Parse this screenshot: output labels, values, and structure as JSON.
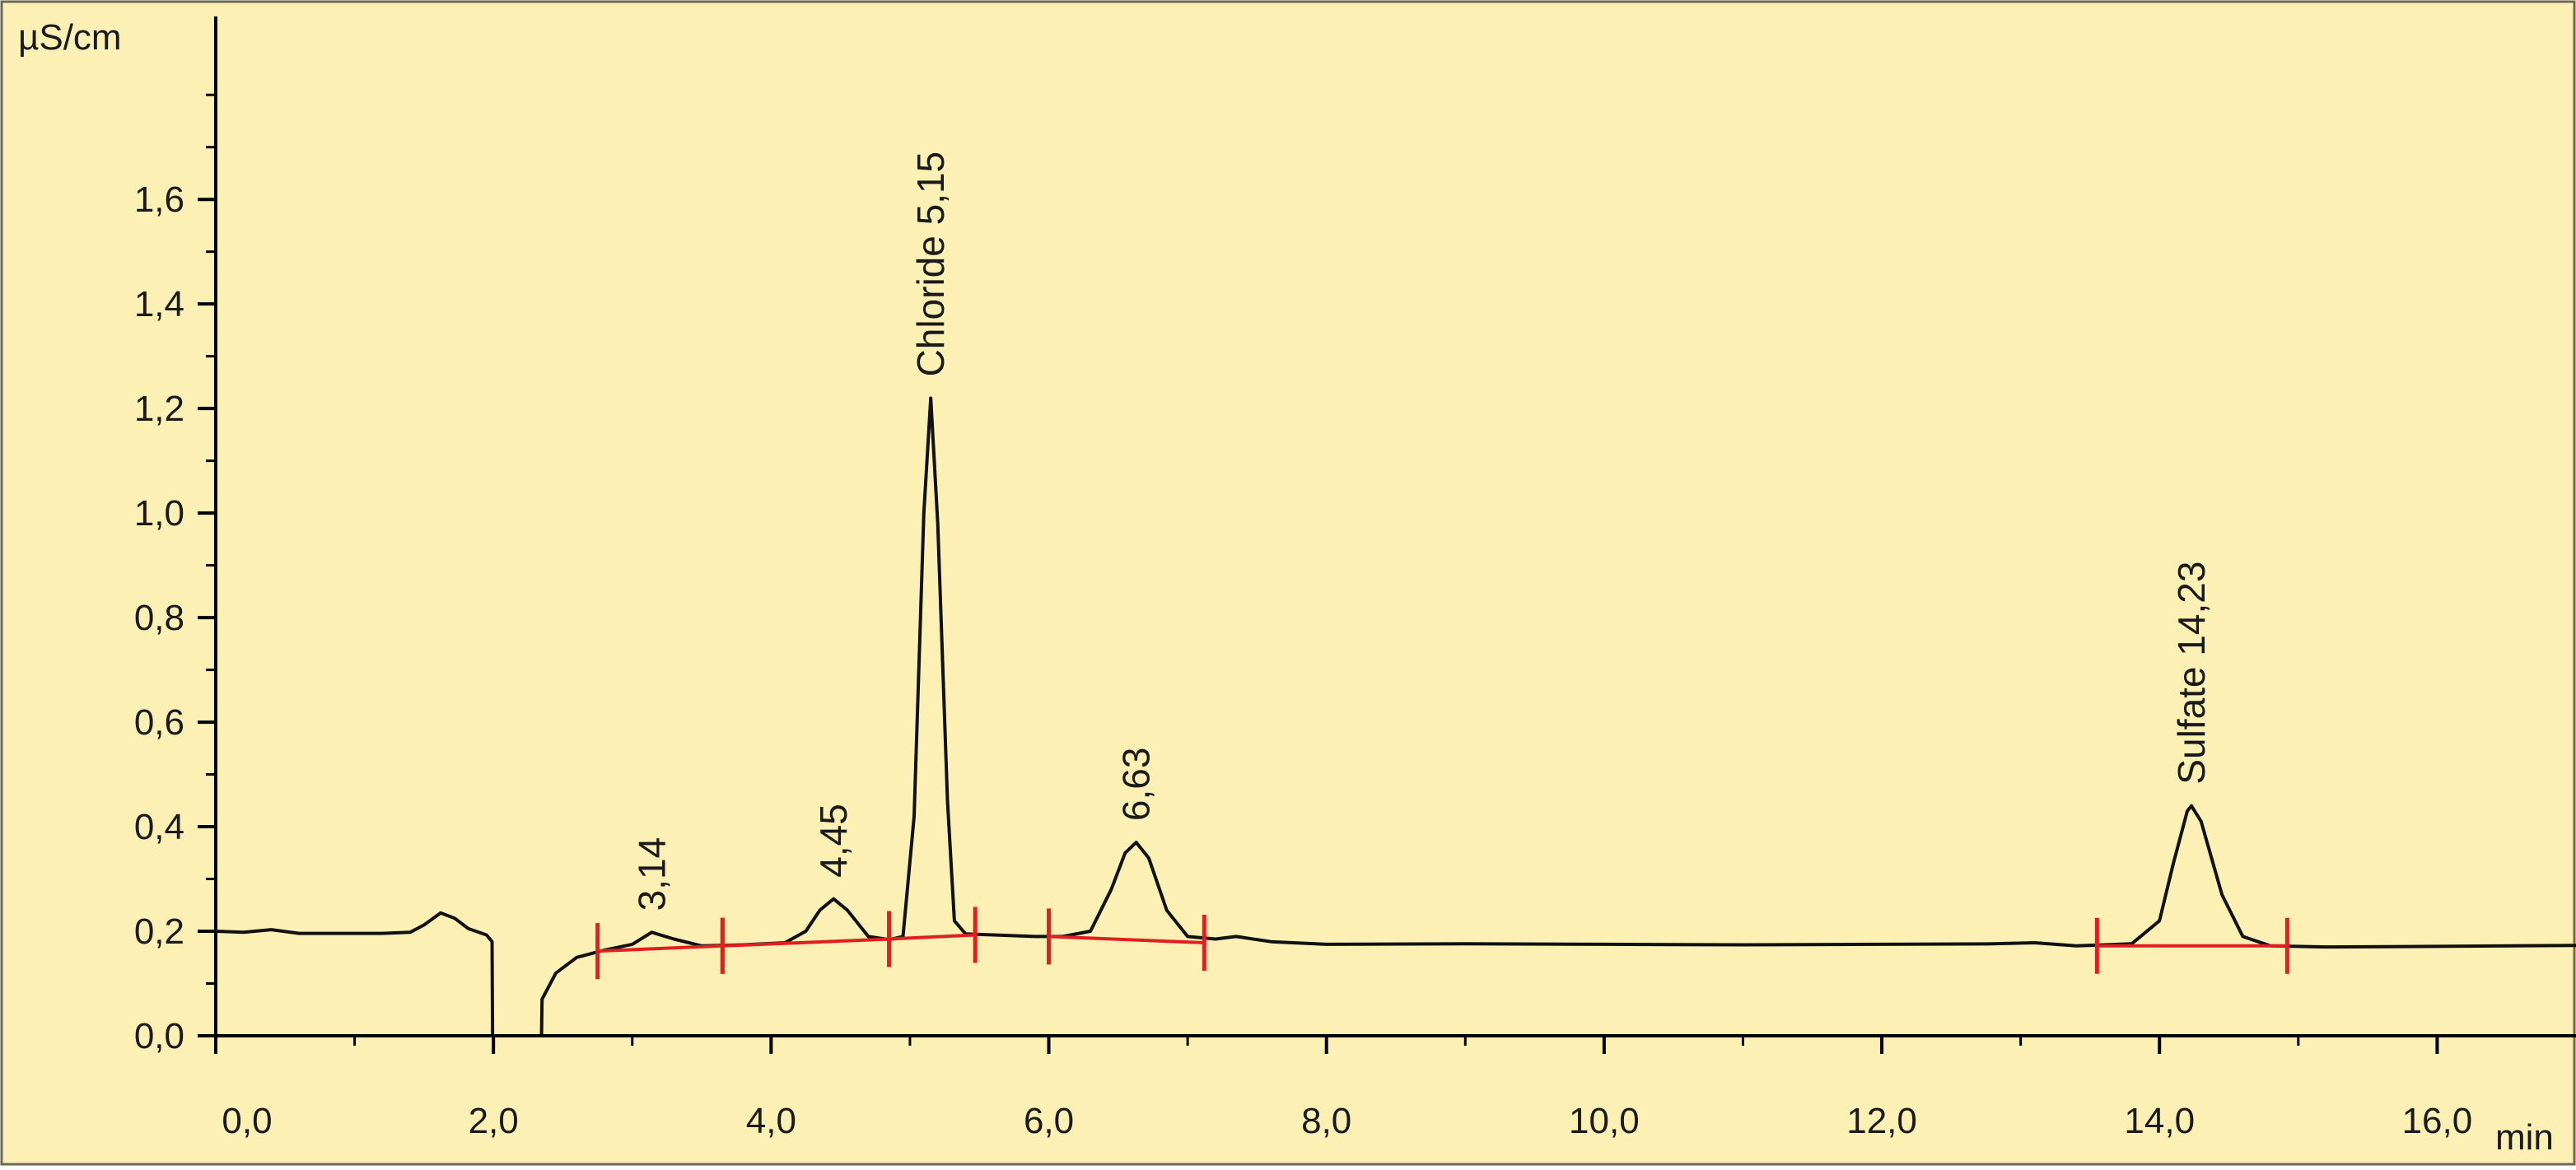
{
  "chart_data": {
    "type": "line",
    "colors": {
      "background": "#fdf0b4",
      "frame": "#6e6a52",
      "axis": "#000000",
      "trace": "#111111",
      "integration": "#e02020"
    },
    "y_unit": "µS/cm",
    "x_unit": "min",
    "xlim": [
      0,
      17
    ],
    "ylim": [
      0,
      1.95
    ],
    "x_ticks": [
      {
        "value": 0,
        "label": "0,0"
      },
      {
        "value": 2,
        "label": "2,0"
      },
      {
        "value": 4,
        "label": "4,0"
      },
      {
        "value": 6,
        "label": "6,0"
      },
      {
        "value": 8,
        "label": "8,0"
      },
      {
        "value": 10,
        "label": "10,0"
      },
      {
        "value": 12,
        "label": "12,0"
      },
      {
        "value": 14,
        "label": "14,0"
      },
      {
        "value": 16,
        "label": "16,0"
      }
    ],
    "x_minor_ticks": [
      1,
      3,
      5,
      7,
      9,
      11,
      13,
      15
    ],
    "y_ticks": [
      {
        "value": 0.0,
        "label": "0,0"
      },
      {
        "value": 0.2,
        "label": "0,2"
      },
      {
        "value": 0.4,
        "label": "0,4"
      },
      {
        "value": 0.6,
        "label": "0,6"
      },
      {
        "value": 0.8,
        "label": "0,8"
      },
      {
        "value": 1.0,
        "label": "1,0"
      },
      {
        "value": 1.2,
        "label": "1,2"
      },
      {
        "value": 1.4,
        "label": "1,4"
      },
      {
        "value": 1.6,
        "label": "1,6"
      }
    ],
    "y_minor_ticks": [
      0.1,
      0.3,
      0.5,
      0.7,
      0.9,
      1.1,
      1.3,
      1.5,
      1.7,
      1.8
    ],
    "grid": false,
    "series": [
      {
        "points": [
          [
            0.0,
            0.2
          ],
          [
            0.2,
            0.198
          ],
          [
            0.4,
            0.203
          ],
          [
            0.6,
            0.196
          ],
          [
            0.9,
            0.196
          ],
          [
            1.2,
            0.196
          ],
          [
            1.4,
            0.198
          ],
          [
            1.5,
            0.212
          ],
          [
            1.62,
            0.235
          ],
          [
            1.72,
            0.225
          ],
          [
            1.82,
            0.205
          ],
          [
            1.95,
            0.193
          ],
          [
            1.99,
            0.18
          ],
          [
            2.0,
            -0.3
          ],
          [
            2.33,
            -0.3
          ],
          [
            2.35,
            0.07
          ],
          [
            2.45,
            0.12
          ],
          [
            2.6,
            0.15
          ],
          [
            2.8,
            0.164
          ],
          [
            3.0,
            0.175
          ],
          [
            3.14,
            0.198
          ],
          [
            3.3,
            0.185
          ],
          [
            3.5,
            0.172
          ],
          [
            3.8,
            0.174
          ],
          [
            4.1,
            0.178
          ],
          [
            4.25,
            0.2
          ],
          [
            4.35,
            0.24
          ],
          [
            4.45,
            0.262
          ],
          [
            4.55,
            0.24
          ],
          [
            4.7,
            0.19
          ],
          [
            4.85,
            0.184
          ],
          [
            4.95,
            0.19
          ],
          [
            5.03,
            0.42
          ],
          [
            5.1,
            1.0
          ],
          [
            5.15,
            1.22
          ],
          [
            5.2,
            0.98
          ],
          [
            5.27,
            0.45
          ],
          [
            5.32,
            0.22
          ],
          [
            5.4,
            0.195
          ],
          [
            5.6,
            0.193
          ],
          [
            5.9,
            0.19
          ],
          [
            6.1,
            0.19
          ],
          [
            6.3,
            0.2
          ],
          [
            6.45,
            0.28
          ],
          [
            6.55,
            0.35
          ],
          [
            6.63,
            0.37
          ],
          [
            6.72,
            0.34
          ],
          [
            6.85,
            0.24
          ],
          [
            7.0,
            0.19
          ],
          [
            7.2,
            0.185
          ],
          [
            7.35,
            0.19
          ],
          [
            7.6,
            0.18
          ],
          [
            8.0,
            0.175
          ],
          [
            9.0,
            0.176
          ],
          [
            10.0,
            0.175
          ],
          [
            11.0,
            0.174
          ],
          [
            12.0,
            0.175
          ],
          [
            12.8,
            0.176
          ],
          [
            13.1,
            0.178
          ],
          [
            13.4,
            0.172
          ],
          [
            13.8,
            0.176
          ],
          [
            14.0,
            0.22
          ],
          [
            14.1,
            0.33
          ],
          [
            14.2,
            0.43
          ],
          [
            14.23,
            0.44
          ],
          [
            14.3,
            0.41
          ],
          [
            14.45,
            0.27
          ],
          [
            14.6,
            0.19
          ],
          [
            14.8,
            0.172
          ],
          [
            15.2,
            0.17
          ],
          [
            16.0,
            0.171
          ],
          [
            17.0,
            0.173
          ]
        ]
      }
    ],
    "integration_segments": [
      {
        "start": [
          2.75,
          0.162
        ],
        "end": [
          3.65,
          0.172
        ]
      },
      {
        "start": [
          3.65,
          0.172
        ],
        "end": [
          4.85,
          0.185
        ]
      },
      {
        "start": [
          4.85,
          0.185
        ],
        "end": [
          5.47,
          0.193
        ]
      },
      {
        "start": [
          6.0,
          0.19
        ],
        "end": [
          7.12,
          0.178
        ]
      },
      {
        "start": [
          13.55,
          0.172
        ],
        "end": [
          14.92,
          0.172
        ]
      }
    ],
    "peak_labels": [
      {
        "text": "3,14",
        "x": 3.14,
        "y": 0.198
      },
      {
        "text": "4,45",
        "x": 4.45,
        "y": 0.262
      },
      {
        "text": "Chloride 5,15",
        "x": 5.15,
        "y": 1.22
      },
      {
        "text": "6,63",
        "x": 6.63,
        "y": 0.37
      },
      {
        "text": "Sulfate 14,23",
        "x": 14.23,
        "y": 0.44
      }
    ]
  }
}
